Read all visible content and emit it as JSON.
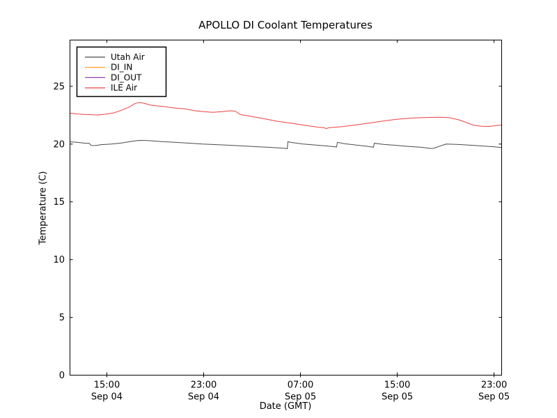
{
  "chart_data": {
    "type": "line",
    "title": "APOLLO DI Coolant Temperatures",
    "xlabel": "Date (GMT)",
    "ylabel": "Temperature (C)",
    "x_units": "hours since Sep 04 00:00 GMT",
    "xlim": [
      11.95,
      47.63
    ],
    "ylim": [
      0,
      29
    ],
    "grid": false,
    "background": "#ffffff",
    "axis_color": "#000000",
    "yticks": [
      0,
      5,
      10,
      15,
      20,
      25
    ],
    "xticks": [
      {
        "value": 15,
        "time": "15:00",
        "date": "Sep 04"
      },
      {
        "value": 23,
        "time": "23:00",
        "date": "Sep 04"
      },
      {
        "value": 31,
        "time": "07:00",
        "date": "Sep 05"
      },
      {
        "value": 39,
        "time": "15:00",
        "date": "Sep 05"
      },
      {
        "value": 47,
        "time": "23:00",
        "date": "Sep 05"
      }
    ],
    "legend": {
      "position": "upper left",
      "entries": [
        {
          "label": "Utah Air",
          "color": "#4a4a4a"
        },
        {
          "label": "DI_IN",
          "color": "#ffa640"
        },
        {
          "label": "DI_OUT",
          "color": "#9c3fb5"
        },
        {
          "label": "ILE Air",
          "color": "#ef4040"
        }
      ]
    },
    "series": [
      {
        "name": "Utah Air",
        "color": "#4a4a4a",
        "points": [
          [
            11.95,
            20.2
          ],
          [
            12.53,
            20.15
          ],
          [
            13.1,
            20.08
          ],
          [
            13.56,
            20.05
          ],
          [
            13.68,
            19.88
          ],
          [
            14.08,
            19.87
          ],
          [
            14.54,
            19.95
          ],
          [
            15.4,
            20.0
          ],
          [
            16.27,
            20.1
          ],
          [
            17.13,
            20.25
          ],
          [
            17.7,
            20.32
          ],
          [
            18.4,
            20.3
          ],
          [
            19.43,
            20.22
          ],
          [
            20.58,
            20.15
          ],
          [
            21.73,
            20.08
          ],
          [
            22.89,
            20.0
          ],
          [
            24.04,
            19.95
          ],
          [
            25.47,
            19.88
          ],
          [
            26.91,
            19.8
          ],
          [
            28.35,
            19.72
          ],
          [
            29.68,
            19.63
          ],
          [
            29.91,
            19.6
          ],
          [
            29.96,
            20.2
          ],
          [
            30.37,
            20.12
          ],
          [
            31.23,
            20.0
          ],
          [
            32.38,
            19.9
          ],
          [
            33.53,
            19.8
          ],
          [
            33.99,
            19.75
          ],
          [
            34.05,
            20.15
          ],
          [
            34.68,
            20.02
          ],
          [
            35.55,
            19.92
          ],
          [
            36.41,
            19.82
          ],
          [
            37.04,
            19.73
          ],
          [
            37.1,
            20.07
          ],
          [
            37.85,
            19.97
          ],
          [
            38.71,
            19.9
          ],
          [
            39.86,
            19.8
          ],
          [
            41.01,
            19.72
          ],
          [
            41.76,
            19.62
          ],
          [
            41.99,
            19.63
          ],
          [
            43.03,
            20.0
          ],
          [
            43.89,
            19.97
          ],
          [
            45.04,
            19.9
          ],
          [
            46.19,
            19.82
          ],
          [
            47.05,
            19.76
          ],
          [
            47.63,
            19.7
          ]
        ]
      },
      {
        "name": "DI_IN",
        "color": "#ffa640",
        "points": []
      },
      {
        "name": "DI_OUT",
        "color": "#9c3fb5",
        "points": []
      },
      {
        "name": "ILE Air",
        "color": "#ef4040",
        "points": [
          [
            11.95,
            22.68
          ],
          [
            12.64,
            22.6
          ],
          [
            13.39,
            22.55
          ],
          [
            14.25,
            22.52
          ],
          [
            14.83,
            22.58
          ],
          [
            15.58,
            22.7
          ],
          [
            16.27,
            22.95
          ],
          [
            16.84,
            23.2
          ],
          [
            17.3,
            23.5
          ],
          [
            17.7,
            23.6
          ],
          [
            18.11,
            23.52
          ],
          [
            18.57,
            23.38
          ],
          [
            19.14,
            23.3
          ],
          [
            19.72,
            23.25
          ],
          [
            20.29,
            23.15
          ],
          [
            20.87,
            23.1
          ],
          [
            21.45,
            23.05
          ],
          [
            22.19,
            22.9
          ],
          [
            23.0,
            22.8
          ],
          [
            23.75,
            22.75
          ],
          [
            24.5,
            22.8
          ],
          [
            25.19,
            22.88
          ],
          [
            25.59,
            22.85
          ],
          [
            26.05,
            22.55
          ],
          [
            26.91,
            22.4
          ],
          [
            27.95,
            22.2
          ],
          [
            29.1,
            21.97
          ],
          [
            30.25,
            21.8
          ],
          [
            31.52,
            21.6
          ],
          [
            32.55,
            21.45
          ],
          [
            32.96,
            21.42
          ],
          [
            33.13,
            21.33
          ],
          [
            33.36,
            21.42
          ],
          [
            34.39,
            21.5
          ],
          [
            35.55,
            21.65
          ],
          [
            36.7,
            21.82
          ],
          [
            37.85,
            22.0
          ],
          [
            39.0,
            22.15
          ],
          [
            40.15,
            22.25
          ],
          [
            41.42,
            22.3
          ],
          [
            42.57,
            22.32
          ],
          [
            43.32,
            22.28
          ],
          [
            44.06,
            22.1
          ],
          [
            44.75,
            21.85
          ],
          [
            45.33,
            21.62
          ],
          [
            46.02,
            21.53
          ],
          [
            46.65,
            21.53
          ],
          [
            47.17,
            21.6
          ],
          [
            47.63,
            21.65
          ]
        ]
      }
    ]
  }
}
